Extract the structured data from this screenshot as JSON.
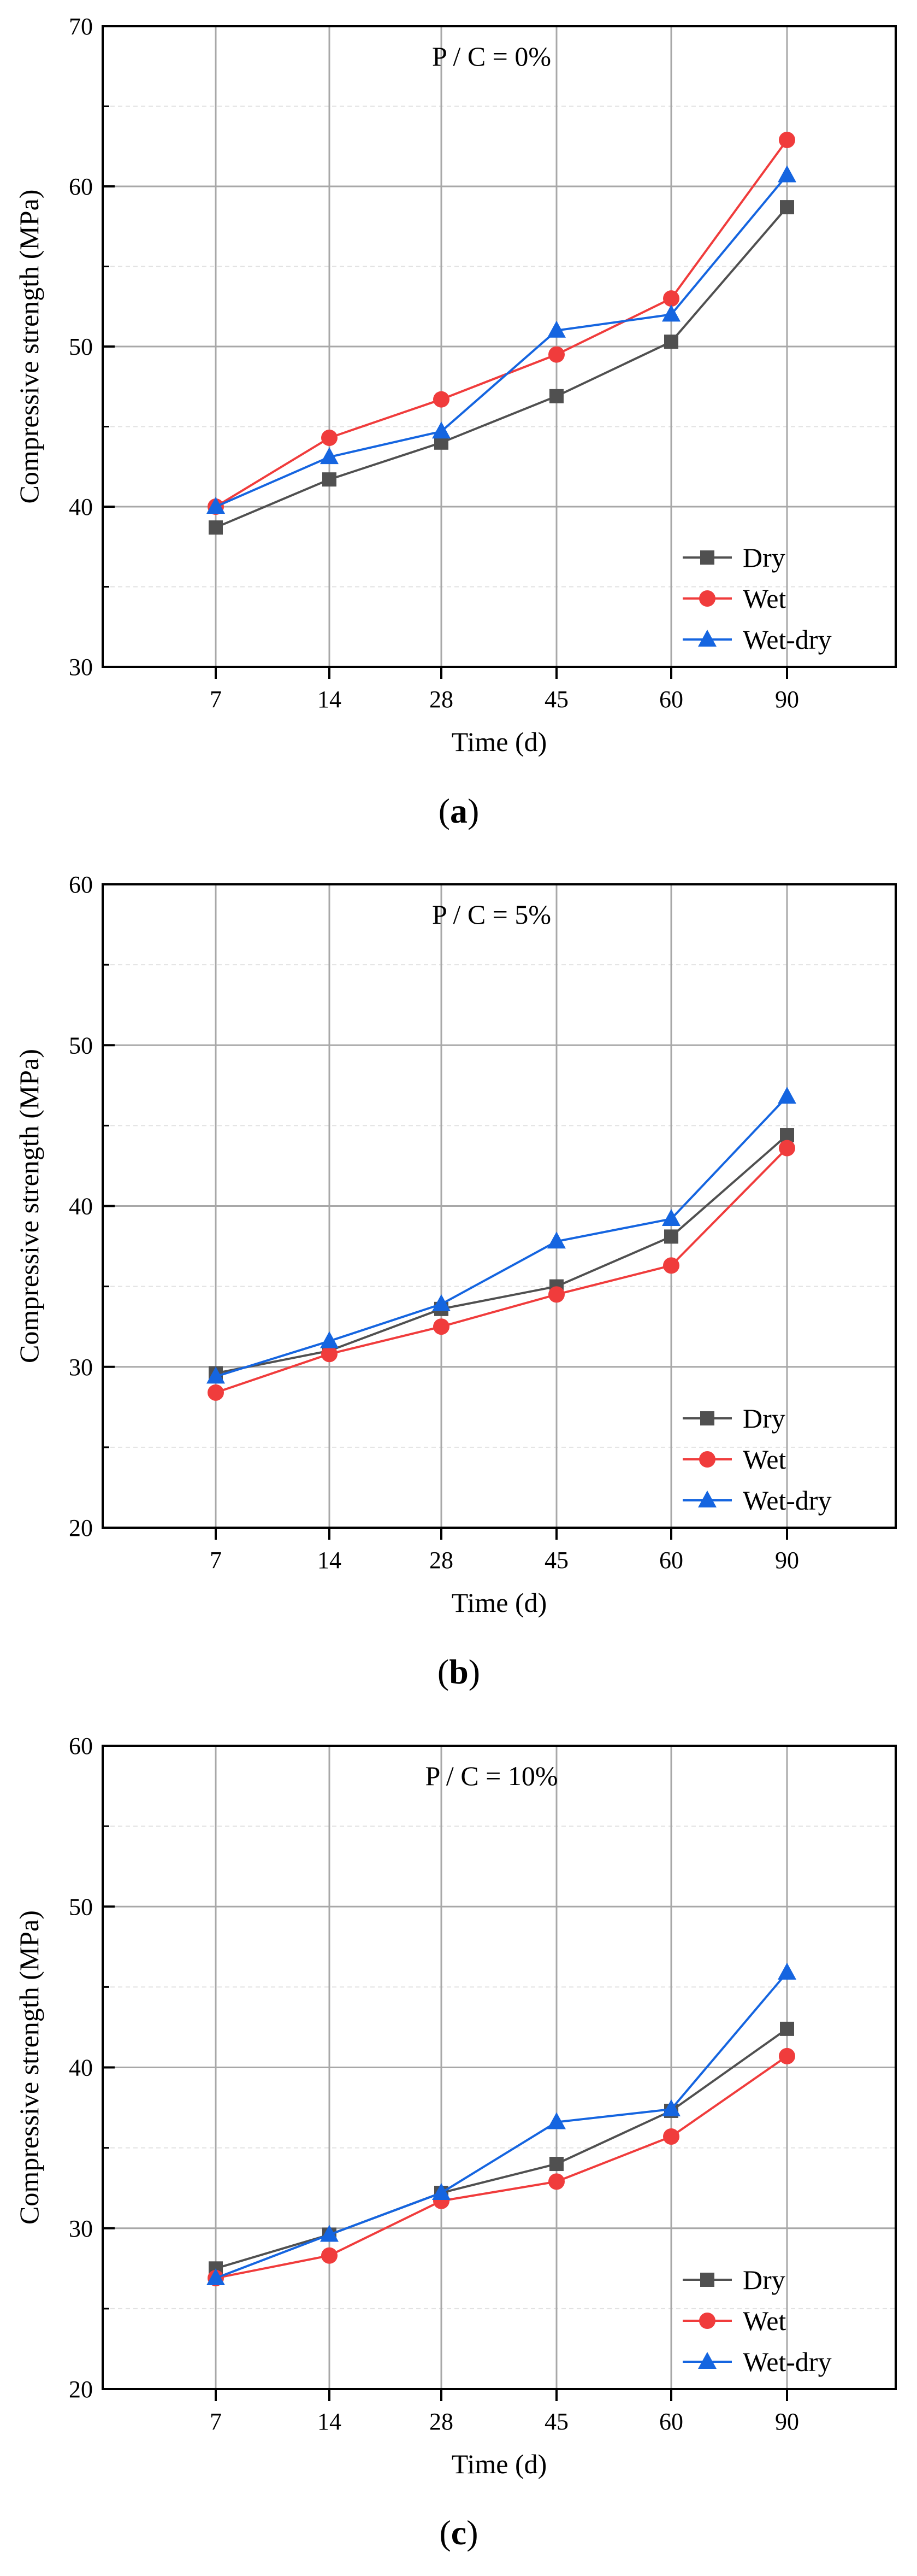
{
  "colors": {
    "dry": "#505050",
    "wet": "#f03c3c",
    "wetdry": "#1565e0",
    "axis": "#000000",
    "major_grid": "#a8a8a8",
    "minor_grid": "#e2e2e2"
  },
  "chart_data": [
    {
      "type": "line",
      "panel_label": "a",
      "annotation": "P / C = 0%",
      "xlabel": "Time (d)",
      "ylabel": "Compressive strength (MPa)",
      "categories": [
        "7",
        "14",
        "28",
        "45",
        "60",
        "90"
      ],
      "ylim": [
        30,
        70
      ],
      "yticks": [
        "30",
        "40",
        "50",
        "60",
        "70"
      ],
      "grid": true,
      "legend_position": "bottom-right",
      "series": [
        {
          "name": "Dry",
          "marker": "square",
          "color_key": "dry",
          "values": [
            38.7,
            41.7,
            44.0,
            46.9,
            50.3,
            58.7
          ]
        },
        {
          "name": "Wet",
          "marker": "circle",
          "color_key": "wet",
          "values": [
            40.0,
            44.3,
            46.7,
            49.5,
            53.0,
            62.9
          ]
        },
        {
          "name": "Wet-dry",
          "marker": "triangle",
          "color_key": "wetdry",
          "values": [
            40.0,
            43.1,
            44.7,
            51.0,
            52.0,
            60.7
          ]
        }
      ]
    },
    {
      "type": "line",
      "panel_label": "b",
      "annotation": "P / C = 5%",
      "xlabel": "Time (d)",
      "ylabel": "Compressive strength (MPa)",
      "categories": [
        "7",
        "14",
        "28",
        "45",
        "60",
        "90"
      ],
      "ylim": [
        20,
        60
      ],
      "yticks": [
        "20",
        "30",
        "40",
        "50",
        "60"
      ],
      "grid": true,
      "legend_position": "bottom-right",
      "series": [
        {
          "name": "Dry",
          "marker": "square",
          "color_key": "dry",
          "values": [
            29.6,
            31.0,
            33.6,
            35.0,
            38.1,
            44.4
          ]
        },
        {
          "name": "Wet",
          "marker": "circle",
          "color_key": "wet",
          "values": [
            28.4,
            30.8,
            32.5,
            34.5,
            36.3,
            43.6
          ]
        },
        {
          "name": "Wet-dry",
          "marker": "triangle",
          "color_key": "wetdry",
          "values": [
            29.4,
            31.6,
            33.9,
            37.8,
            39.2,
            46.8
          ]
        }
      ]
    },
    {
      "type": "line",
      "panel_label": "c",
      "annotation": "P / C = 10%",
      "xlabel": "Time (d)",
      "ylabel": "Compressive strength (MPa)",
      "categories": [
        "7",
        "14",
        "28",
        "45",
        "60",
        "90"
      ],
      "ylim": [
        20,
        60
      ],
      "yticks": [
        "20",
        "30",
        "40",
        "50",
        "60"
      ],
      "grid": true,
      "legend_position": "bottom-right",
      "series": [
        {
          "name": "Dry",
          "marker": "square",
          "color_key": "dry",
          "values": [
            27.5,
            29.6,
            32.2,
            34.0,
            37.3,
            42.4
          ]
        },
        {
          "name": "Wet",
          "marker": "circle",
          "color_key": "wet",
          "values": [
            26.9,
            28.3,
            31.7,
            32.9,
            35.7,
            40.7
          ]
        },
        {
          "name": "Wet-dry",
          "marker": "triangle",
          "color_key": "wetdry",
          "values": [
            26.9,
            29.6,
            32.2,
            36.6,
            37.4,
            45.9
          ]
        }
      ]
    }
  ]
}
